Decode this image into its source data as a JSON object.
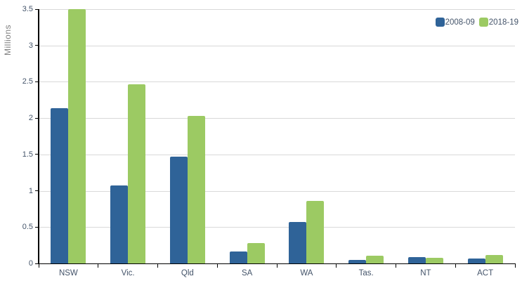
{
  "chart_data": {
    "type": "bar",
    "title": "",
    "xlabel": "",
    "ylabel": "Millions",
    "categories": [
      "NSW",
      "Vic.",
      "Qld",
      "SA",
      "WA",
      "Tas.",
      "NT",
      "ACT"
    ],
    "series": [
      {
        "name": "2008-09",
        "color": "#2f6398",
        "values": [
          2.14,
          1.07,
          1.47,
          0.16,
          0.57,
          0.05,
          0.09,
          0.07
        ]
      },
      {
        "name": "2018-19",
        "color": "#9cca63",
        "values": [
          3.5,
          2.47,
          2.03,
          0.28,
          0.86,
          0.11,
          0.08,
          0.12
        ]
      }
    ],
    "ylim": [
      0,
      3.5
    ],
    "ytick_step": 0.5,
    "ytick_labels": [
      "0",
      "0.5",
      "1",
      "1.5",
      "2",
      "2.5",
      "3",
      "3.5"
    ],
    "grid": "horizontal",
    "legend_position": "top-right",
    "colors": {
      "gridline": "#d9d9d9",
      "axis_line": "#000000",
      "tick_label": "#44546a",
      "axis_title": "#7f7f7f",
      "background": "#ffffff"
    }
  }
}
